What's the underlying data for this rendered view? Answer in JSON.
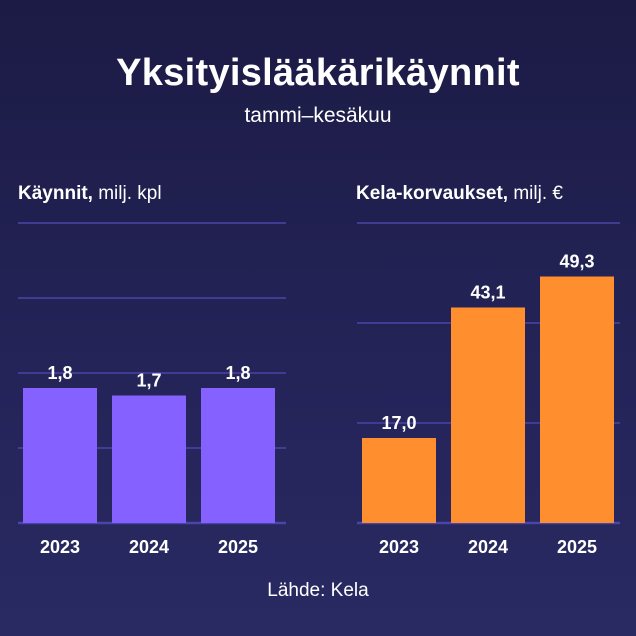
{
  "header": {
    "title": "Yksityislääkärikäynnit",
    "subtitle": "tammi–kesäkuu"
  },
  "footer": {
    "source": "Lähde: Kela"
  },
  "colors": {
    "left_bar": "#8562ff",
    "right_bar": "#ff8e2e",
    "grid": "#4a45a8",
    "background": "#1f1e4d"
  },
  "chart_data": [
    {
      "type": "bar",
      "title_bold": "Käynnit,",
      "title_rest": " milj. kpl",
      "categories": [
        "2023",
        "2024",
        "2025"
      ],
      "values": [
        1.8,
        1.7,
        1.8
      ],
      "value_labels": [
        "1,8",
        "1,7",
        "1,8"
      ],
      "ylim": [
        0,
        4
      ],
      "grid_values": [
        0,
        1,
        2,
        3,
        4
      ],
      "grid": true
    },
    {
      "type": "bar",
      "title_bold": "Kela-korvaukset,",
      "title_rest": " milj. €",
      "categories": [
        "2023",
        "2024",
        "2025"
      ],
      "values": [
        17.0,
        43.1,
        49.3
      ],
      "value_labels": [
        "17,0",
        "43,1",
        "49,3"
      ],
      "ylim": [
        0,
        60
      ],
      "grid_values": [
        0,
        20,
        40,
        60
      ],
      "grid": true
    }
  ]
}
